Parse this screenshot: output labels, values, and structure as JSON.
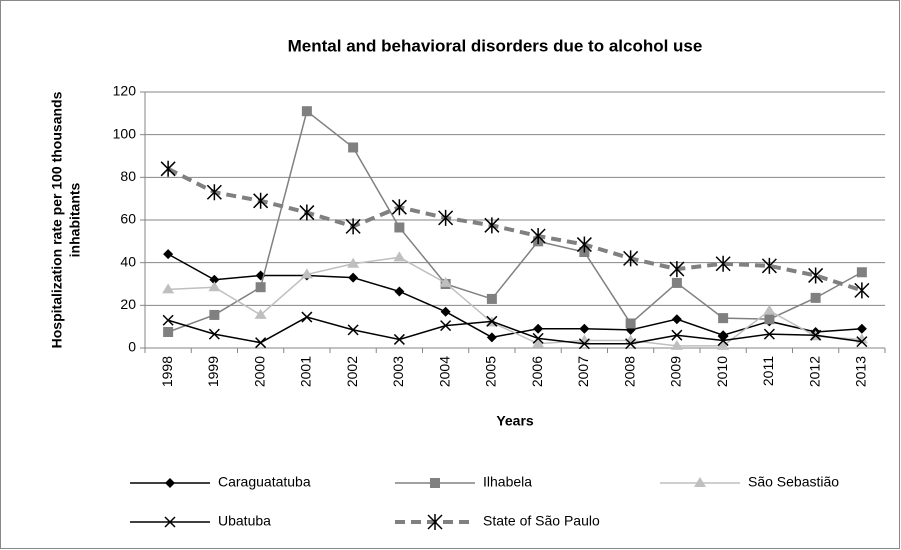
{
  "chart_data": {
    "type": "line",
    "title": "Mental and behavioral disorders due to alcohol use",
    "x_label": "Years",
    "y_label": [
      "Hospitalization rate per 100 thousands",
      "inhabitants"
    ],
    "categories": [
      "1998",
      "1999",
      "2000",
      "2001",
      "2002",
      "2003",
      "2004",
      "2005",
      "2006",
      "2007",
      "2008",
      "2009",
      "2010",
      "2011",
      "2012",
      "2013"
    ],
    "ylim": [
      0,
      120
    ],
    "yticks": [
      0,
      20,
      40,
      60,
      80,
      100,
      120
    ],
    "grid": true,
    "legend": "bottom",
    "series": [
      {
        "name": "Caraguatatuba",
        "color": "#000000",
        "marker": "diamond",
        "values": [
          44,
          32,
          34,
          34,
          33,
          26.5,
          17,
          5,
          9,
          9,
          8.5,
          13.5,
          6,
          12.5,
          7.5,
          9
        ]
      },
      {
        "name": "Ilhabela",
        "color": "#808080",
        "marker": "square",
        "values": [
          7.5,
          15.5,
          28.5,
          111,
          94,
          56.5,
          30,
          23,
          50,
          45,
          11.5,
          30.5,
          14,
          13.5,
          23.5,
          35.5
        ]
      },
      {
        "name": "São Sebastião",
        "color": "#bfbfbf",
        "marker": "triangle",
        "values": [
          27.5,
          28.5,
          15.5,
          34.5,
          39.5,
          42.5,
          30.5,
          12,
          2,
          3.5,
          3.5,
          1,
          1,
          17.5,
          5.5,
          4
        ]
      },
      {
        "name": "Ubatuba",
        "color": "#000000",
        "marker": "x",
        "values": [
          13,
          6.5,
          2.5,
          14.5,
          8.5,
          4,
          10.5,
          12.5,
          4.5,
          2,
          2,
          6,
          3.5,
          6.5,
          6,
          3
        ]
      },
      {
        "name": "State of São Paulo",
        "color": "#808080",
        "marker": "star",
        "dashed": true,
        "values": [
          84,
          73,
          69,
          63.5,
          57,
          66,
          61,
          57.5,
          52.5,
          48.5,
          42,
          37,
          39.5,
          38.5,
          34,
          27
        ]
      }
    ]
  }
}
